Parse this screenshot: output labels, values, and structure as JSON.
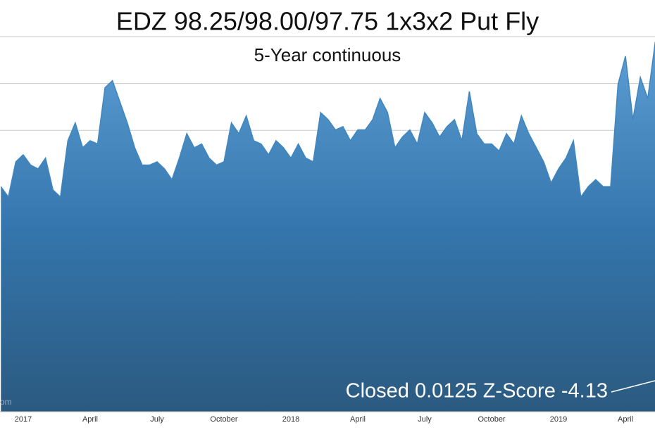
{
  "chart_data": {
    "type": "area",
    "title": "EDZ 98.25/98.00/97.75 1x3x2 Put Fly",
    "subtitle": "5-Year continuous",
    "annotation": "Closed 0.0125 Z-Score -4.13",
    "watermark": "om",
    "categories": [
      null,
      null,
      null,
      "2017",
      null,
      null,
      null,
      null,
      null,
      null,
      null,
      null,
      "April",
      null,
      null,
      null,
      null,
      null,
      null,
      null,
      null,
      "July",
      null,
      null,
      null,
      null,
      null,
      null,
      null,
      null,
      "October",
      null,
      null,
      null,
      null,
      null,
      null,
      null,
      null,
      "2018",
      null,
      null,
      null,
      null,
      null,
      null,
      null,
      null,
      "April",
      null,
      null,
      null,
      null,
      null,
      null,
      null,
      null,
      "July",
      null,
      null,
      null,
      null,
      null,
      null,
      null,
      null,
      "October",
      null,
      null,
      null,
      null,
      null,
      null,
      null,
      null,
      "2019",
      null,
      null,
      null,
      null,
      null,
      null,
      null,
      null,
      "April",
      null,
      null,
      null,
      null
    ],
    "values": [
      4.8,
      4.58,
      5.33,
      5.48,
      5.26,
      5.18,
      5.41,
      4.73,
      4.58,
      5.78,
      6.16,
      5.63,
      5.78,
      5.71,
      6.91,
      7.06,
      6.61,
      6.16,
      5.63,
      5.26,
      5.26,
      5.33,
      5.18,
      4.95,
      5.41,
      5.93,
      5.63,
      5.71,
      5.41,
      5.26,
      5.33,
      6.16,
      5.93,
      6.31,
      5.78,
      5.71,
      5.48,
      5.78,
      5.63,
      5.41,
      5.71,
      5.41,
      5.33,
      6.38,
      6.23,
      6.01,
      6.08,
      5.78,
      6.01,
      6.01,
      6.23,
      6.68,
      6.38,
      5.63,
      5.86,
      6.01,
      5.71,
      6.38,
      6.16,
      5.86,
      6.08,
      6.23,
      5.78,
      6.83,
      5.93,
      5.71,
      5.71,
      5.56,
      5.93,
      5.71,
      6.31,
      5.93,
      5.63,
      5.33,
      4.88,
      5.18,
      5.41,
      5.78,
      4.58,
      4.8,
      4.95,
      4.8,
      4.8,
      6.98,
      7.58,
      6.23,
      7.13,
      6.68,
      7.88
    ],
    "color": "#3f86c0",
    "ylim": [
      0,
      8.78
    ],
    "yticks": [
      6,
      7,
      8
    ],
    "grid": true
  }
}
